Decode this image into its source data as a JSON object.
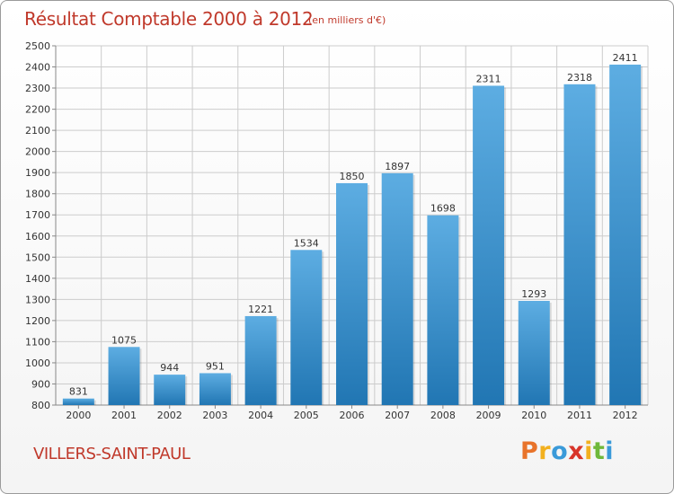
{
  "header": {
    "title": "Résultat Comptable 2000 à 2012",
    "subtitle": "(en milliers d'€)"
  },
  "footer": {
    "commune": "VILLERS-SAINT-PAUL",
    "brand_letters": [
      "P",
      "r",
      "o",
      "x",
      "i",
      "t",
      "i"
    ],
    "brand_colors": [
      "#e8732a",
      "#f2b01e",
      "#3a9ad9",
      "#d8352a",
      "#f2b01e",
      "#6fb83a",
      "#3a9ad9"
    ]
  },
  "colors": {
    "bar_top": "#5dade2",
    "bar_bottom": "#2176b3",
    "grid": "#cccccc",
    "text_accent": "#c0392b"
  },
  "chart_data": {
    "type": "bar",
    "title": "Résultat Comptable 2000 à 2012",
    "subtitle": "(en milliers d'€)",
    "categories": [
      "2000",
      "2001",
      "2002",
      "2003",
      "2004",
      "2005",
      "2006",
      "2007",
      "2008",
      "2009",
      "2010",
      "2011",
      "2012"
    ],
    "values": [
      831,
      1075,
      944,
      951,
      1221,
      1534,
      1850,
      1897,
      1698,
      2311,
      1293,
      2318,
      2411
    ],
    "ylim": [
      800,
      2500
    ],
    "yticks": [
      800,
      900,
      1000,
      1100,
      1200,
      1300,
      1400,
      1500,
      1600,
      1700,
      1800,
      1900,
      2000,
      2100,
      2200,
      2300,
      2400,
      2500
    ],
    "grid": true,
    "legend": "none",
    "xlabel": "",
    "ylabel": ""
  }
}
